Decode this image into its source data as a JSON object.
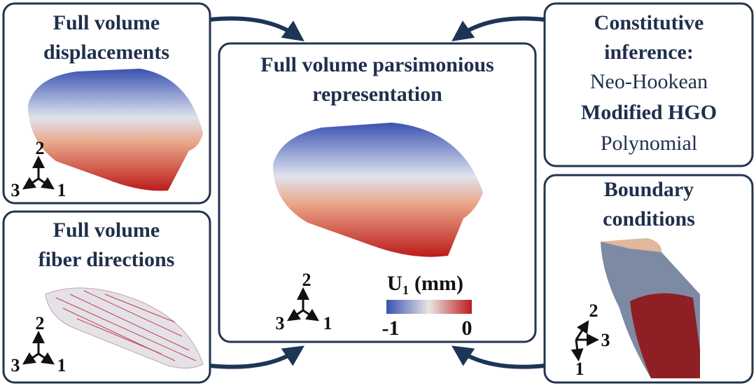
{
  "displacements_panel": {
    "title": [
      "Full volume",
      "displacements"
    ],
    "triad": {
      "up": "2",
      "left": "3",
      "right": "1"
    }
  },
  "fiber_panel": {
    "title": [
      "Full volume",
      "fiber directions"
    ],
    "triad": {
      "up": "2",
      "left": "3",
      "right": "1"
    }
  },
  "center_panel": {
    "title": [
      "Full volume parsimonious",
      "representation"
    ],
    "triad": {
      "up": "2",
      "left": "3",
      "right": "1"
    },
    "colorbar": {
      "symbol": "U",
      "subscript": "1",
      "unit": "(mm)",
      "min_label": "-1",
      "max_label": "0"
    }
  },
  "constitutive_panel": {
    "title": [
      "Constitutive",
      "inference:"
    ],
    "models": [
      "Neo-Hookean",
      "Modified HGO",
      "Polynomial"
    ]
  },
  "boundary_panel": {
    "title": [
      "Boundary",
      "conditions"
    ],
    "triad": {
      "up": "2",
      "right": "3",
      "down": "1"
    }
  }
}
